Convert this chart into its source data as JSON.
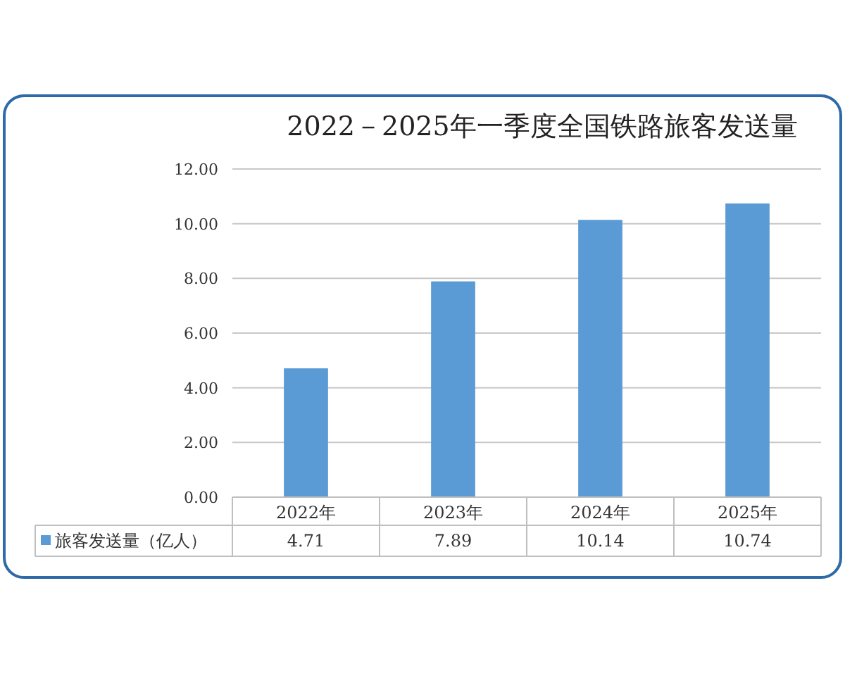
{
  "chart_data": {
    "type": "bar",
    "title": "2022－2025年一季度全国铁路旅客发送量",
    "categories": [
      "2022年",
      "2023年",
      "2024年",
      "2025年"
    ],
    "series": [
      {
        "name": "旅客发送量（亿人）",
        "color": "#5b9bd5",
        "values": [
          4.71,
          7.89,
          10.14,
          10.74
        ]
      }
    ],
    "ylim": [
      0,
      12
    ],
    "yticks": [
      {
        "value": 0,
        "label": "0.00"
      },
      {
        "value": 2,
        "label": "2.00"
      },
      {
        "value": 4,
        "label": "4.00"
      },
      {
        "value": 6,
        "label": "6.00"
      },
      {
        "value": 8,
        "label": "8.00"
      },
      {
        "value": 10,
        "label": "10.00"
      },
      {
        "value": 12,
        "label": "12.00"
      }
    ],
    "grid": "y",
    "legend": "bottom",
    "data_labels": true
  }
}
